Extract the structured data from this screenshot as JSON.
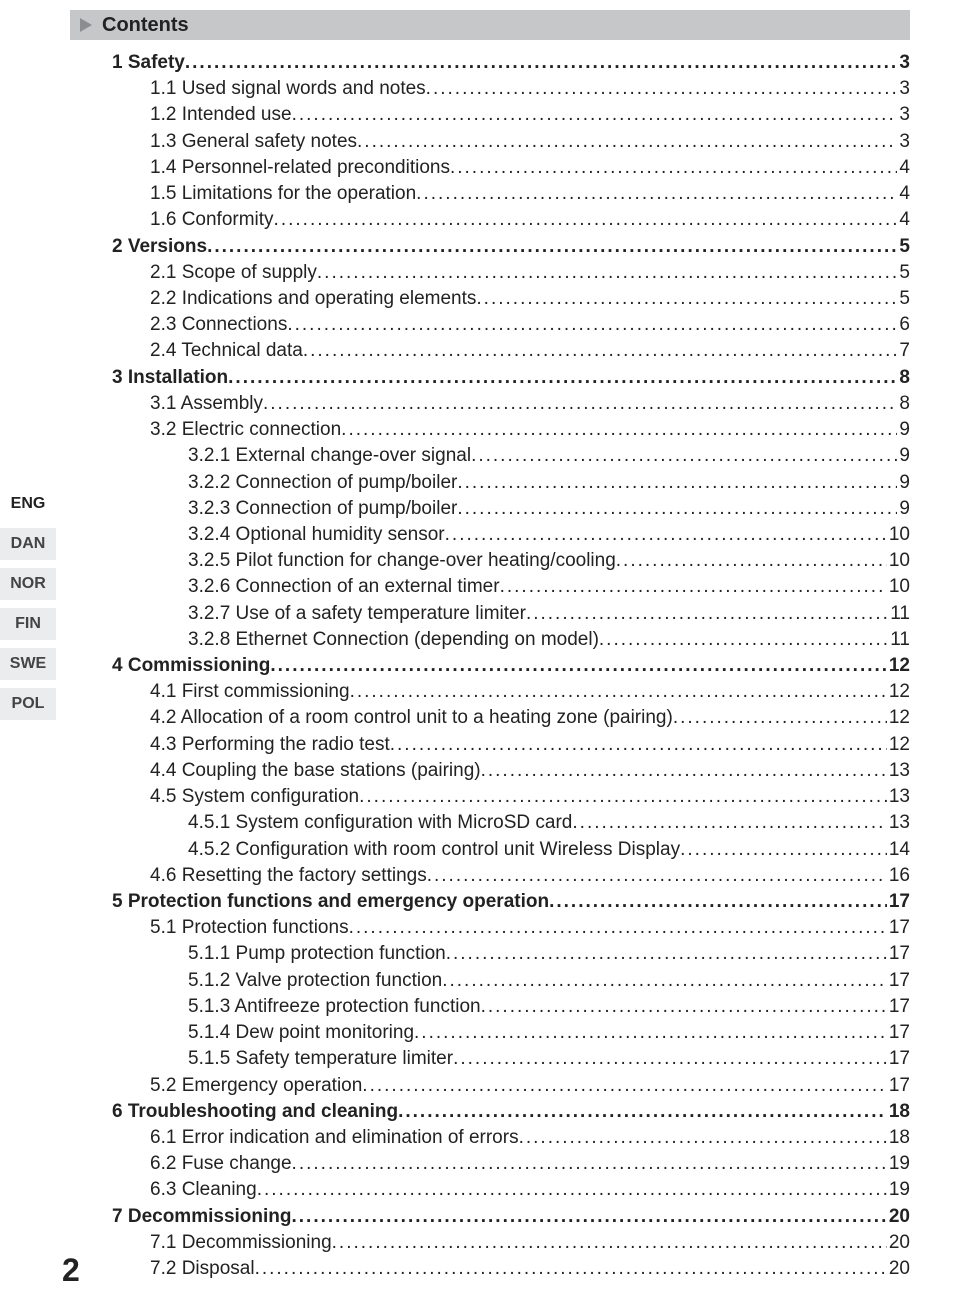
{
  "header": {
    "title": "Contents",
    "arrow_color": "#8b8d90"
  },
  "page_number": "2",
  "lang_tabs": [
    {
      "code": "ENG",
      "active": true
    },
    {
      "code": "DAN",
      "active": false
    },
    {
      "code": "NOR",
      "active": false
    },
    {
      "code": "FIN",
      "active": false
    },
    {
      "code": "SWE",
      "active": false
    },
    {
      "code": "POL",
      "active": false
    }
  ],
  "toc": [
    {
      "level": 1,
      "label": "1 Safety",
      "page": "3"
    },
    {
      "level": 2,
      "label": "1.1 Used signal words and notes",
      "page": "3"
    },
    {
      "level": 2,
      "label": "1.2 Intended use",
      "page": "3"
    },
    {
      "level": 2,
      "label": "1.3 General safety notes",
      "page": "3"
    },
    {
      "level": 2,
      "label": "1.4 Personnel-related preconditions",
      "page": "4"
    },
    {
      "level": 2,
      "label": "1.5 Limitations for the operation",
      "page": "4"
    },
    {
      "level": 2,
      "label": "1.6 Conformity",
      "page": "4"
    },
    {
      "level": 1,
      "label": "2 Versions",
      "page": "5"
    },
    {
      "level": 2,
      "label": "2.1 Scope of supply",
      "page": "5"
    },
    {
      "level": 2,
      "label": "2.2 Indications and operating elements",
      "page": "5"
    },
    {
      "level": 2,
      "label": "2.3 Connections",
      "page": "6"
    },
    {
      "level": 2,
      "label": "2.4 Technical data",
      "page": "7"
    },
    {
      "level": 1,
      "label": "3 Installation",
      "page": "8"
    },
    {
      "level": 2,
      "label": "3.1 Assembly",
      "page": "8"
    },
    {
      "level": 2,
      "label": "3.2 Electric connection",
      "page": "9"
    },
    {
      "level": 3,
      "label": "3.2.1 External change-over signal ",
      "page": "9"
    },
    {
      "level": 3,
      "label": "3.2.2 Connection of pump/boiler",
      "page": "9"
    },
    {
      "level": 3,
      "label": "3.2.3 Connection of pump/boiler",
      "page": "9"
    },
    {
      "level": 3,
      "label": "3.2.4 Optional humidity sensor",
      "page": "10"
    },
    {
      "level": 3,
      "label": "3.2.5 Pilot function for change-over heating/cooling",
      "page": "10"
    },
    {
      "level": 3,
      "label": "3.2.6 Connection of an external timer",
      "page": "10"
    },
    {
      "level": 3,
      "label": "3.2.7 Use of a safety temperature limiter",
      "page": "11"
    },
    {
      "level": 3,
      "label": "3.2.8 Ethernet Connection (depending on model)",
      "page": "11"
    },
    {
      "level": 1,
      "label": "4 Commissioning",
      "page": "12"
    },
    {
      "level": 2,
      "label": "4.1 First commissioning",
      "page": "12"
    },
    {
      "level": 2,
      "label": "4.2 Allocation of a room control unit to a heating zone (pairing)",
      "page": "12"
    },
    {
      "level": 2,
      "label": "4.3 Performing the radio test",
      "page": "12"
    },
    {
      "level": 2,
      "label": "4.4 Coupling the base stations (pairing)",
      "page": "13"
    },
    {
      "level": 2,
      "label": "4.5 System configuration",
      "page": "13"
    },
    {
      "level": 3,
      "label": "4.5.1 System configuration with MicroSD card",
      "page": "13"
    },
    {
      "level": 3,
      "label": "4.5.2 Configuration with room control unit Wireless Display",
      "page": "14"
    },
    {
      "level": 2,
      "label": "4.6 Resetting the factory settings",
      "page": "16"
    },
    {
      "level": 1,
      "label": "5 Protection functions and emergency operation",
      "page": "17"
    },
    {
      "level": 2,
      "label": "5.1 Protection functions",
      "page": "17"
    },
    {
      "level": 3,
      "label": "5.1.1 Pump protection function",
      "page": "17"
    },
    {
      "level": 3,
      "label": "5.1.2 Valve protection function",
      "page": "17"
    },
    {
      "level": 3,
      "label": "5.1.3 Antifreeze protection function",
      "page": "17"
    },
    {
      "level": 3,
      "label": "5.1.4 Dew point monitoring",
      "page": "17"
    },
    {
      "level": 3,
      "label": "5.1.5 Safety temperature limiter",
      "page": "17"
    },
    {
      "level": 2,
      "label": "5.2 Emergency operation",
      "page": "17"
    },
    {
      "level": 1,
      "label": "6 Troubleshooting and cleaning",
      "page": "18"
    },
    {
      "level": 2,
      "label": "6.1 Error indication and elimination of errors",
      "page": "18"
    },
    {
      "level": 2,
      "label": "6.2 Fuse change",
      "page": "19"
    },
    {
      "level": 2,
      "label": "6.3 Cleaning",
      "page": "19"
    },
    {
      "level": 1,
      "label": "7 Decommissioning",
      "page": "20"
    },
    {
      "level": 2,
      "label": "7.1 Decommissioning",
      "page": "20"
    },
    {
      "level": 2,
      "label": "7.2 Disposal",
      "page": "20"
    }
  ]
}
